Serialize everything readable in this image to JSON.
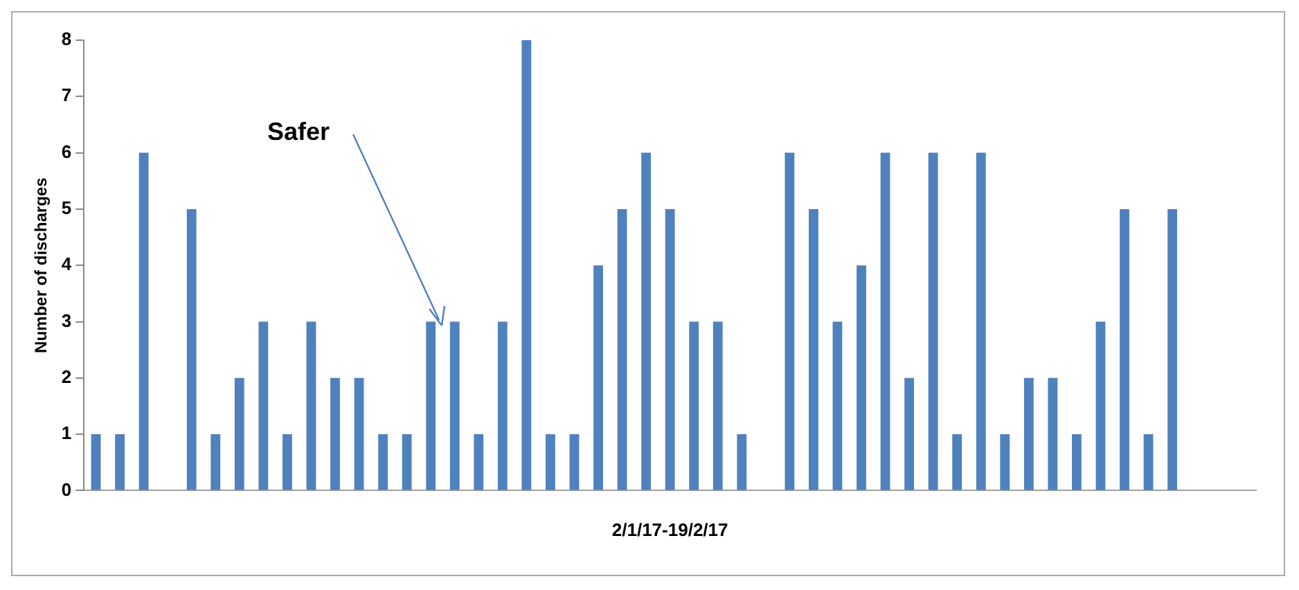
{
  "chart_data": {
    "type": "bar",
    "xlabel": "2/1/17-19/2/17",
    "ylabel": "Number of discharges",
    "categories": [
      null,
      null,
      null,
      null,
      null,
      null,
      null,
      null,
      null,
      null,
      null,
      null,
      null,
      null,
      null,
      null,
      null,
      null,
      null,
      null,
      null,
      null,
      null,
      null,
      null,
      null,
      null,
      null,
      null,
      null,
      null,
      null,
      null,
      null,
      null,
      null,
      null,
      null,
      null,
      null,
      null,
      null,
      null,
      null,
      null,
      null,
      null,
      null,
      null
    ],
    "values": [
      1,
      1,
      6,
      0,
      5,
      1,
      2,
      3,
      1,
      3,
      2,
      2,
      1,
      1,
      3,
      3,
      1,
      3,
      8,
      1,
      1,
      4,
      5,
      6,
      5,
      3,
      3,
      1,
      0,
      6,
      5,
      3,
      4,
      6,
      2,
      6,
      1,
      6,
      1,
      2,
      2,
      1,
      3,
      5,
      1,
      5,
      0,
      0,
      0
    ],
    "color": "#4f81bd",
    "ylim": [
      0,
      8
    ],
    "yticks": [
      0,
      1,
      2,
      3,
      4,
      5,
      6,
      7,
      8
    ],
    "grid": false,
    "legend": false,
    "annotations": [
      "Safer"
    ]
  }
}
